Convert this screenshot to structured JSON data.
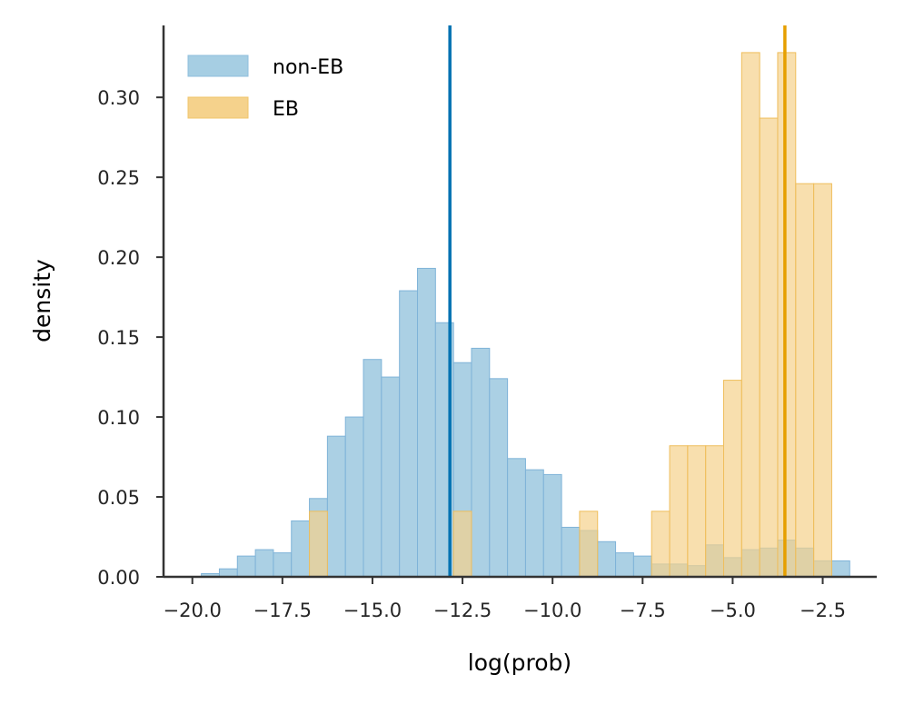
{
  "chart_data": {
    "type": "histogram",
    "xlabel": "log(prob)",
    "ylabel": "density",
    "xlim": [
      -20.8,
      -1.0
    ],
    "ylim": [
      0,
      0.345
    ],
    "xticks": [
      -20.0,
      -17.5,
      -15.0,
      -12.5,
      -10.0,
      -7.5,
      -5.0,
      -2.5
    ],
    "xtick_labels": [
      "−20.0",
      "−17.5",
      "−15.0",
      "−12.5",
      "−10.0",
      "−7.5",
      "−5.0",
      "−2.5"
    ],
    "yticks": [
      0.0,
      0.05,
      0.1,
      0.15,
      0.2,
      0.25,
      0.3
    ],
    "ytick_labels": [
      "0.00",
      "0.05",
      "0.10",
      "0.15",
      "0.20",
      "0.25",
      "0.30"
    ],
    "grid": false,
    "legend_position": "top-left",
    "series": [
      {
        "name": "non-EB",
        "color": "#0072b2",
        "fill": "#a6cee3",
        "mean_line": -12.85,
        "bins": [
          {
            "x0": -19.75,
            "x1": -19.25,
            "value": 0.002
          },
          {
            "x0": -19.25,
            "x1": -18.75,
            "value": 0.005
          },
          {
            "x0": -18.75,
            "x1": -18.25,
            "value": 0.013
          },
          {
            "x0": -18.25,
            "x1": -17.75,
            "value": 0.017
          },
          {
            "x0": -17.75,
            "x1": -17.25,
            "value": 0.015
          },
          {
            "x0": -17.25,
            "x1": -16.75,
            "value": 0.035
          },
          {
            "x0": -16.75,
            "x1": -16.25,
            "value": 0.049
          },
          {
            "x0": -16.25,
            "x1": -15.75,
            "value": 0.088
          },
          {
            "x0": -15.75,
            "x1": -15.25,
            "value": 0.1
          },
          {
            "x0": -15.25,
            "x1": -14.75,
            "value": 0.136
          },
          {
            "x0": -14.75,
            "x1": -14.25,
            "value": 0.125
          },
          {
            "x0": -14.25,
            "x1": -13.75,
            "value": 0.179
          },
          {
            "x0": -13.75,
            "x1": -13.25,
            "value": 0.193
          },
          {
            "x0": -13.25,
            "x1": -12.75,
            "value": 0.159
          },
          {
            "x0": -12.75,
            "x1": -12.25,
            "value": 0.134
          },
          {
            "x0": -12.25,
            "x1": -11.75,
            "value": 0.143
          },
          {
            "x0": -11.75,
            "x1": -11.25,
            "value": 0.124
          },
          {
            "x0": -11.25,
            "x1": -10.75,
            "value": 0.074
          },
          {
            "x0": -10.75,
            "x1": -10.25,
            "value": 0.067
          },
          {
            "x0": -10.25,
            "x1": -9.75,
            "value": 0.064
          },
          {
            "x0": -9.75,
            "x1": -9.25,
            "value": 0.031
          },
          {
            "x0": -9.25,
            "x1": -8.75,
            "value": 0.029
          },
          {
            "x0": -8.75,
            "x1": -8.25,
            "value": 0.022
          },
          {
            "x0": -8.25,
            "x1": -7.75,
            "value": 0.015
          },
          {
            "x0": -7.75,
            "x1": -7.25,
            "value": 0.013
          },
          {
            "x0": -7.25,
            "x1": -6.75,
            "value": 0.008
          },
          {
            "x0": -6.75,
            "x1": -6.25,
            "value": 0.008
          },
          {
            "x0": -6.25,
            "x1": -5.75,
            "value": 0.007
          },
          {
            "x0": -5.75,
            "x1": -5.25,
            "value": 0.02
          },
          {
            "x0": -5.25,
            "x1": -4.75,
            "value": 0.012
          },
          {
            "x0": -4.75,
            "x1": -4.25,
            "value": 0.017
          },
          {
            "x0": -4.25,
            "x1": -3.75,
            "value": 0.018
          },
          {
            "x0": -3.75,
            "x1": -3.25,
            "value": 0.023
          },
          {
            "x0": -3.25,
            "x1": -2.75,
            "value": 0.018
          },
          {
            "x0": -2.75,
            "x1": -2.25,
            "value": 0.01
          },
          {
            "x0": -2.25,
            "x1": -1.75,
            "value": 0.01
          }
        ]
      },
      {
        "name": "EB",
        "color": "#e69f00",
        "fill": "#f5d28c",
        "mean_line": -3.55,
        "bins": [
          {
            "x0": -16.75,
            "x1": -16.25,
            "value": 0.041
          },
          {
            "x0": -12.75,
            "x1": -12.25,
            "value": 0.041
          },
          {
            "x0": -9.25,
            "x1": -8.75,
            "value": 0.041
          },
          {
            "x0": -7.25,
            "x1": -6.75,
            "value": 0.041
          },
          {
            "x0": -6.75,
            "x1": -6.25,
            "value": 0.082
          },
          {
            "x0": -6.25,
            "x1": -5.75,
            "value": 0.082
          },
          {
            "x0": -5.75,
            "x1": -5.25,
            "value": 0.082
          },
          {
            "x0": -5.25,
            "x1": -4.75,
            "value": 0.123
          },
          {
            "x0": -4.75,
            "x1": -4.25,
            "value": 0.328
          },
          {
            "x0": -4.25,
            "x1": -3.75,
            "value": 0.287
          },
          {
            "x0": -3.75,
            "x1": -3.25,
            "value": 0.328
          },
          {
            "x0": -3.25,
            "x1": -2.75,
            "value": 0.246
          },
          {
            "x0": -2.75,
            "x1": -2.25,
            "value": 0.246
          }
        ]
      }
    ]
  }
}
